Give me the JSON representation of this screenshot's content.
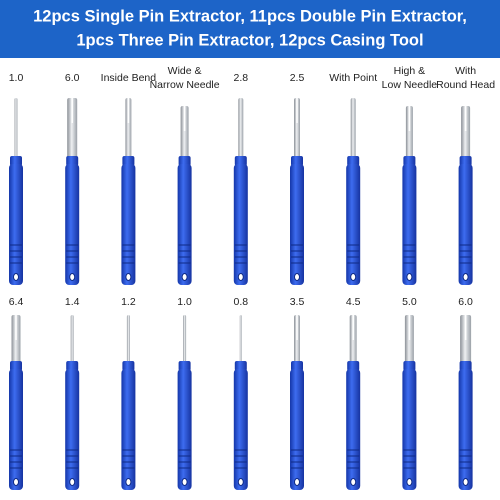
{
  "header": {
    "title_lines": [
      "12pcs Single Pin Extractor, 11pcs Double Pin Extractor,",
      "1pcs Three Pin Extractor, 12pcs Casing Tool"
    ]
  },
  "rows": [
    {
      "labels": [
        [
          "1.0"
        ],
        [
          "6.0"
        ],
        [
          "Inside Bend"
        ],
        [
          "Wide &",
          "Narrow Needle"
        ],
        [
          "2.8"
        ],
        [
          "2.5"
        ],
        [
          "With Point"
        ],
        [
          "High &",
          "Low Needle"
        ],
        [
          "With",
          "Round Head"
        ]
      ]
    },
    {
      "labels": [
        [
          "6.4"
        ],
        [
          "1.4"
        ],
        [
          "1.2"
        ],
        [
          "1.0"
        ],
        [
          "0.8"
        ],
        [
          "3.5"
        ],
        [
          "4.5"
        ],
        [
          "5.0"
        ],
        [
          "6.0"
        ]
      ]
    }
  ]
}
